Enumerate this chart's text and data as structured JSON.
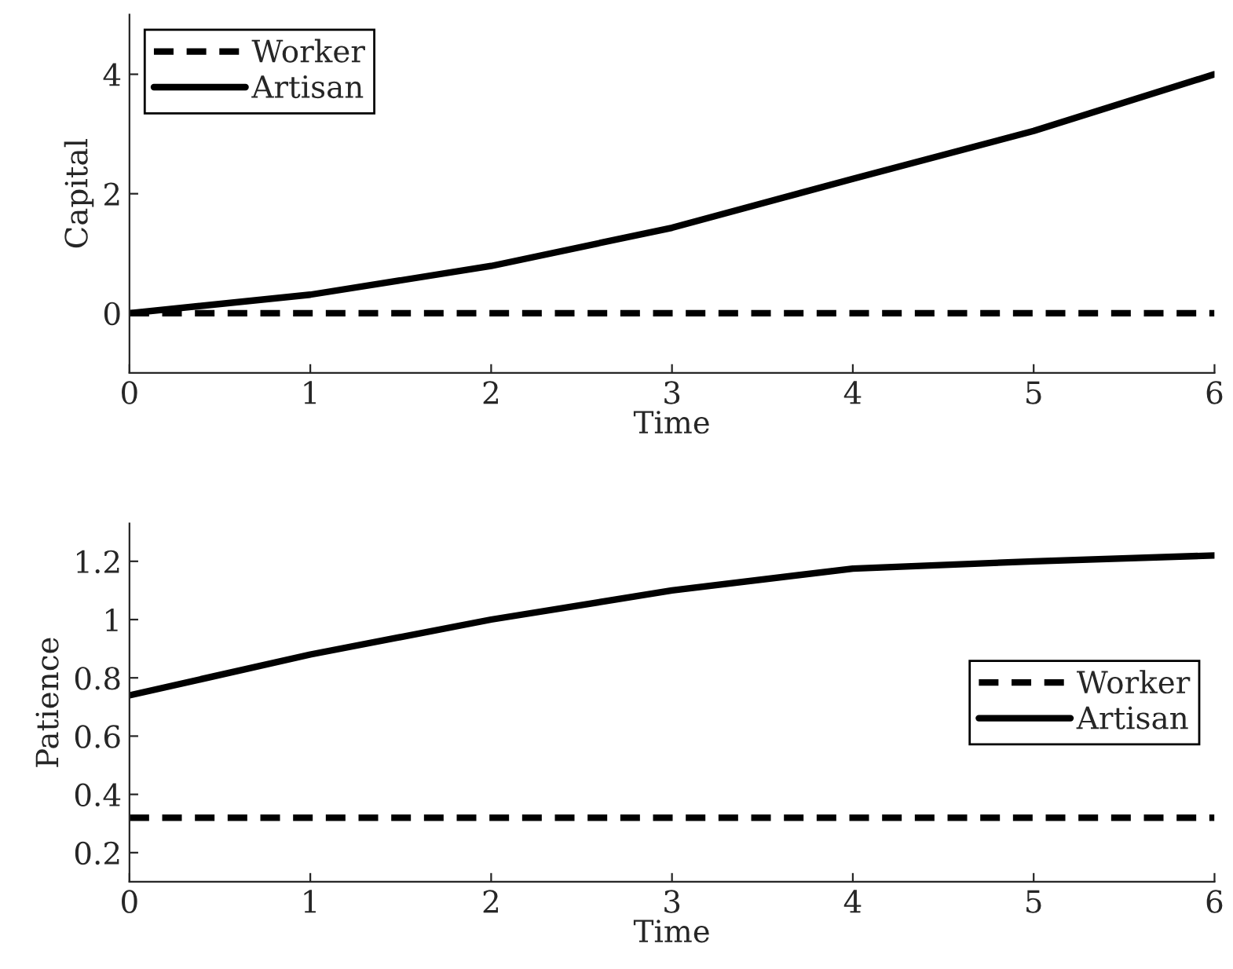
{
  "chart_data": [
    {
      "type": "line",
      "xlabel": "Time",
      "ylabel": "Capital",
      "x": [
        0,
        1,
        2,
        3,
        4,
        5,
        6
      ],
      "xlim": [
        0,
        6
      ],
      "xticks": [
        0,
        1,
        2,
        3,
        4,
        5,
        6
      ],
      "ylim": [
        -1,
        5
      ],
      "yticks": [
        0,
        2,
        4
      ],
      "legend": "top left",
      "grid": false,
      "series": [
        {
          "name": "Worker",
          "color": "#000000",
          "line_style": "dashed",
          "values": [
            0,
            0,
            0,
            0,
            0,
            0,
            0
          ]
        },
        {
          "name": "Artisan",
          "color": "#000000",
          "line_style": "solid",
          "values": [
            0,
            0.31,
            0.79,
            1.43,
            2.25,
            3.05,
            4.0
          ]
        }
      ]
    },
    {
      "type": "line",
      "xlabel": "Time",
      "ylabel": "Patience",
      "x": [
        0,
        1,
        2,
        3,
        4,
        5,
        6
      ],
      "xlim": [
        0,
        6
      ],
      "xticks": [
        0,
        1,
        2,
        3,
        4,
        5,
        6
      ],
      "ylim": [
        0.1,
        1.33
      ],
      "yticks": [
        {
          "value": 0.2,
          "label": "0.2"
        },
        {
          "value": 0.4,
          "label": "0.4"
        },
        {
          "value": 0.6,
          "label": "0.6"
        },
        {
          "value": 0.8,
          "label": "0.8"
        },
        {
          "value": 1,
          "label": "1"
        },
        {
          "value": 1.2,
          "label": "1.2"
        }
      ],
      "legend": "center right",
      "grid": false,
      "series": [
        {
          "name": "Worker",
          "color": "#000000",
          "line_style": "dashed",
          "values": [
            0.32,
            0.32,
            0.32,
            0.32,
            0.32,
            0.32,
            0.32
          ]
        },
        {
          "name": "Artisan",
          "color": "#000000",
          "line_style": "solid",
          "values": [
            0.74,
            0.88,
            1.0,
            1.1,
            1.175,
            1.2,
            1.22
          ]
        }
      ]
    }
  ]
}
